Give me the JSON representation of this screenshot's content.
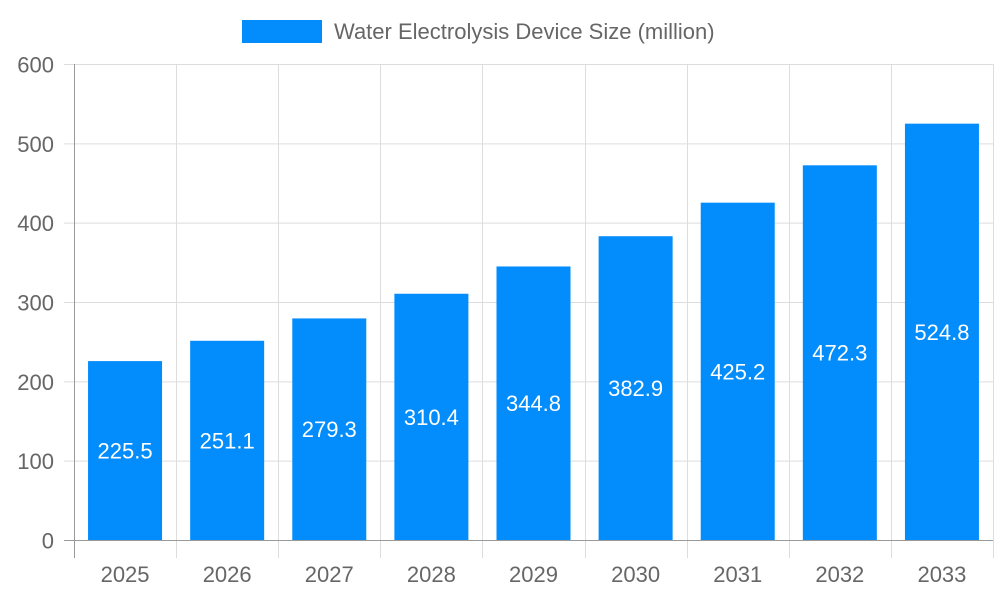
{
  "chart_data": {
    "type": "bar",
    "title": "",
    "xlabel": "",
    "ylabel": "",
    "categories": [
      "2025",
      "2026",
      "2027",
      "2028",
      "2029",
      "2030",
      "2031",
      "2032",
      "2033"
    ],
    "series": [
      {
        "name": "Water Electrolysis Device Size (million)",
        "values": [
          225.5,
          251.1,
          279.3,
          310.4,
          344.8,
          382.9,
          425.2,
          472.3,
          524.8
        ],
        "color": "#038cfc"
      }
    ],
    "ylim": [
      0,
      600
    ],
    "yticks": [
      "0",
      "100",
      "200",
      "300",
      "400",
      "500",
      "600"
    ],
    "data_labels": [
      "225.5",
      "251.1",
      "279.3",
      "310.4",
      "344.8",
      "382.9",
      "425.2",
      "472.3",
      "524.8"
    ],
    "grid": true,
    "legend": "top-center"
  }
}
